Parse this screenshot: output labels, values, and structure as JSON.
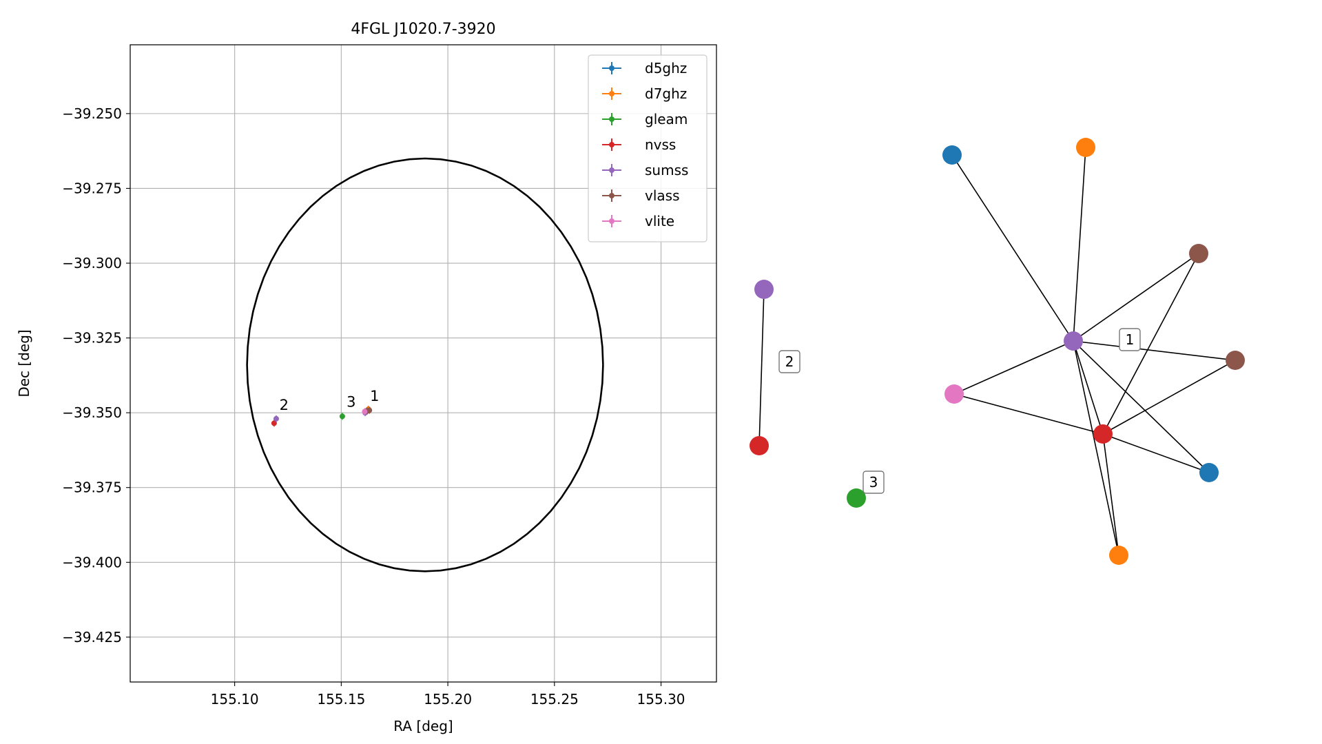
{
  "chart_data": [
    {
      "type": "scatter",
      "title": "4FGL J1020.7-3920",
      "xlabel": "RA [deg]",
      "ylabel": "Dec [deg]",
      "xlim": [
        155.051,
        155.326
      ],
      "ylim": [
        -39.44,
        -39.227
      ],
      "xticks": [
        "155.10",
        "155.15",
        "155.20",
        "155.25",
        "155.30"
      ],
      "xtick_values": [
        155.1,
        155.15,
        155.2,
        155.25,
        155.3
      ],
      "yticks": [
        "−39.250",
        "−39.275",
        "−39.300",
        "−39.325",
        "−39.350",
        "−39.375",
        "−39.400",
        "−39.425"
      ],
      "ytick_values": [
        -39.25,
        -39.275,
        -39.3,
        -39.325,
        -39.35,
        -39.375,
        -39.4,
        -39.425
      ],
      "grid": true,
      "legend_position": "top-right",
      "series": [
        {
          "name": "d5ghz",
          "color": "#1f77b4",
          "points": [
            {
              "x": 155.1625,
              "y": -39.349
            }
          ]
        },
        {
          "name": "d7ghz",
          "color": "#ff7f0e",
          "points": [
            {
              "x": 155.1628,
              "y": -39.3488
            }
          ]
        },
        {
          "name": "gleam",
          "color": "#2ca02c",
          "points": [
            {
              "x": 155.1505,
              "y": -39.3512
            }
          ]
        },
        {
          "name": "nvss",
          "color": "#d62728",
          "points": [
            {
              "x": 155.1185,
              "y": -39.3535
            },
            {
              "x": 155.1615,
              "y": -39.3497
            }
          ]
        },
        {
          "name": "sumss",
          "color": "#9467bd",
          "points": [
            {
              "x": 155.1195,
              "y": -39.352
            },
            {
              "x": 155.1612,
              "y": -39.35
            }
          ]
        },
        {
          "name": "vlass",
          "color": "#8c564b",
          "points": [
            {
              "x": 155.1632,
              "y": -39.3492
            },
            {
              "x": 155.1622,
              "y": -39.3494
            }
          ]
        },
        {
          "name": "vlite",
          "color": "#e377c2",
          "points": [
            {
              "x": 155.161,
              "y": -39.3496
            }
          ]
        }
      ],
      "ellipse": {
        "ra_center": 155.1893,
        "dec_center": -39.334,
        "ra_semi": 0.0835,
        "dec_semi": 0.069,
        "color": "#000000"
      },
      "annotations": [
        {
          "text": "1",
          "x": 155.1635,
          "y": -39.346
        },
        {
          "text": "2",
          "x": 155.121,
          "y": -39.349
        },
        {
          "text": "3",
          "x": 155.1525,
          "y": -39.348
        }
      ]
    },
    {
      "type": "network",
      "nodes": [
        {
          "id": "n1",
          "color": "#1f77b4"
        },
        {
          "id": "n2",
          "color": "#ff7f0e"
        },
        {
          "id": "n3",
          "color": "#8c564b"
        },
        {
          "id": "n4",
          "color": "#9467bd"
        },
        {
          "id": "n5",
          "color": "#8c564b"
        },
        {
          "id": "n6",
          "color": "#e377c2"
        },
        {
          "id": "n7",
          "color": "#d62728"
        },
        {
          "id": "n8",
          "color": "#1f77b4"
        },
        {
          "id": "n9",
          "color": "#ff7f0e"
        },
        {
          "id": "n10",
          "color": "#9467bd"
        },
        {
          "id": "n11",
          "color": "#d62728"
        },
        {
          "id": "n12",
          "color": "#2ca02c"
        }
      ],
      "edges": [
        [
          "n4",
          "n1"
        ],
        [
          "n4",
          "n2"
        ],
        [
          "n4",
          "n3"
        ],
        [
          "n4",
          "n5"
        ],
        [
          "n4",
          "n6"
        ],
        [
          "n4",
          "n7"
        ],
        [
          "n4",
          "n8"
        ],
        [
          "n4",
          "n9"
        ],
        [
          "n7",
          "n3"
        ],
        [
          "n7",
          "n5"
        ],
        [
          "n7",
          "n6"
        ],
        [
          "n7",
          "n8"
        ],
        [
          "n7",
          "n9"
        ],
        [
          "n10",
          "n11"
        ]
      ],
      "labels": [
        {
          "text": "1"
        },
        {
          "text": "2"
        },
        {
          "text": "3"
        }
      ]
    }
  ]
}
